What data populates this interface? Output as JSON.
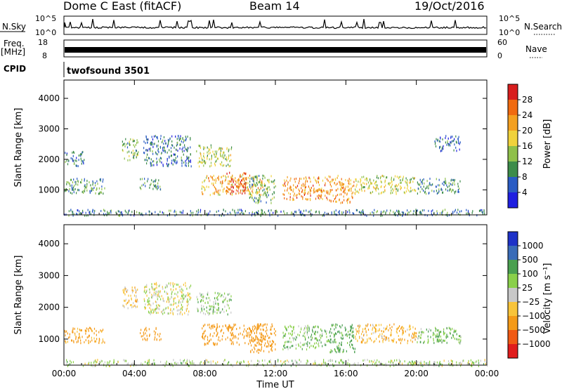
{
  "header": {
    "station": "Dome C East (fitACF)",
    "beam": "Beam 14",
    "date": "19/Oct/2016"
  },
  "summary_panels": {
    "nsky_label": "N.Sky",
    "nsky_ticks": [
      "10^5",
      "10^0"
    ],
    "nsearch_label": "N.Search",
    "nsearch_ticks": [
      "10^5",
      "10^0"
    ],
    "freq_label_line1": "Freq.",
    "freq_label_line2": "[MHz]",
    "freq_ticks": [
      "18",
      "8"
    ],
    "nave_label": "Nave",
    "nave_ticks": [
      "60",
      "0"
    ],
    "cpid_label": "CPID",
    "cpid_value": "twofsound 3501"
  },
  "colors": {
    "power": [
      "#1f1fe0",
      "#2a5cc4",
      "#3d8c4a",
      "#8fc04a",
      "#f0d23c",
      "#f4a020",
      "#f06a10",
      "#d81e1e"
    ],
    "velocity": [
      "#e01c1c",
      "#f05a14",
      "#f49a18",
      "#f8c43a",
      "#c8c8c8",
      "#8ad04a",
      "#4aa050",
      "#3a6cb8",
      "#1e32c8"
    ]
  },
  "chart_data": [
    {
      "type": "heatmap",
      "name": "power",
      "xlabel": "Time UT",
      "ylabel": "Slant Range [km]",
      "xlim": [
        0,
        24
      ],
      "ylim": [
        180,
        4600
      ],
      "x_ticks": [
        "00:00",
        "04:00",
        "08:00",
        "12:00",
        "16:00",
        "20:00",
        "00:00"
      ],
      "x_tick_values": [
        0,
        4,
        8,
        12,
        16,
        20,
        24
      ],
      "y_ticks": [
        1000,
        2000,
        3000,
        4000
      ],
      "colorbar": {
        "label": "Power [dB]",
        "ticks": [
          "28",
          "24",
          "20",
          "16",
          "12",
          "8",
          "4"
        ],
        "range": [
          0,
          30
        ]
      },
      "regions": [
        {
          "t0": 0.0,
          "t1": 2.3,
          "r0": 900,
          "r1": 1400,
          "value": 10
        },
        {
          "t0": 0.0,
          "t1": 1.2,
          "r0": 1800,
          "r1": 2300,
          "value": 7
        },
        {
          "t0": 3.3,
          "t1": 4.2,
          "r0": 2000,
          "r1": 2700,
          "value": 12
        },
        {
          "t0": 4.3,
          "t1": 5.5,
          "r0": 1000,
          "r1": 1400,
          "value": 9
        },
        {
          "t0": 4.5,
          "t1": 7.2,
          "r0": 1800,
          "r1": 2800,
          "value": 7
        },
        {
          "t0": 7.5,
          "t1": 9.5,
          "r0": 1800,
          "r1": 2500,
          "value": 14
        },
        {
          "t0": 7.8,
          "t1": 11.3,
          "r0": 850,
          "r1": 1500,
          "value": 19
        },
        {
          "t0": 9.2,
          "t1": 10.4,
          "r0": 900,
          "r1": 1600,
          "value": 26
        },
        {
          "t0": 10.5,
          "t1": 12.0,
          "r0": 600,
          "r1": 1500,
          "value": 11
        },
        {
          "t0": 12.4,
          "t1": 15.0,
          "r0": 700,
          "r1": 1450,
          "value": 22
        },
        {
          "t0": 15.0,
          "t1": 16.5,
          "r0": 600,
          "r1": 1500,
          "value": 21
        },
        {
          "t0": 16.5,
          "t1": 20.0,
          "r0": 900,
          "r1": 1500,
          "value": 15
        },
        {
          "t0": 20.0,
          "t1": 22.5,
          "r0": 900,
          "r1": 1400,
          "value": 9
        },
        {
          "t0": 21.0,
          "t1": 22.5,
          "r0": 2300,
          "r1": 2800,
          "value": 7
        },
        {
          "t0": 0.0,
          "t1": 24.0,
          "r0": 180,
          "r1": 380,
          "value": 8
        }
      ]
    },
    {
      "type": "heatmap",
      "name": "velocity",
      "xlabel": "Time UT",
      "ylabel": "Slant Range [km]",
      "xlim": [
        0,
        24
      ],
      "ylim": [
        180,
        4600
      ],
      "x_ticks": [
        "00:00",
        "04:00",
        "08:00",
        "12:00",
        "16:00",
        "20:00",
        "00:00"
      ],
      "x_tick_values": [
        0,
        4,
        8,
        12,
        16,
        20,
        24
      ],
      "y_ticks": [
        1000,
        2000,
        3000,
        4000
      ],
      "colorbar": {
        "label": "Velocity [m s⁻¹]",
        "ticks": [
          "1000",
          "500",
          "100",
          "25",
          "−25",
          "−100",
          "−500",
          "−1000"
        ]
      },
      "regions": [
        {
          "t0": 0.0,
          "t1": 2.3,
          "r0": 900,
          "r1": 1400,
          "value": -150
        },
        {
          "t0": 3.3,
          "t1": 4.2,
          "r0": 2000,
          "r1": 2700,
          "value": -60
        },
        {
          "t0": 4.3,
          "t1": 5.5,
          "r0": 1000,
          "r1": 1400,
          "value": -200
        },
        {
          "t0": 4.5,
          "t1": 7.2,
          "r0": 1800,
          "r1": 2800,
          "value": 0
        },
        {
          "t0": 7.5,
          "t1": 9.5,
          "r0": 1800,
          "r1": 2500,
          "value": 60
        },
        {
          "t0": 7.8,
          "t1": 11.3,
          "r0": 850,
          "r1": 1500,
          "value": -250
        },
        {
          "t0": 10.5,
          "t1": 12.0,
          "r0": 600,
          "r1": 1500,
          "value": -300
        },
        {
          "t0": 12.4,
          "t1": 15.0,
          "r0": 700,
          "r1": 1450,
          "value": 80
        },
        {
          "t0": 15.0,
          "t1": 16.5,
          "r0": 600,
          "r1": 1500,
          "value": 150
        },
        {
          "t0": 16.5,
          "t1": 20.0,
          "r0": 900,
          "r1": 1500,
          "value": -90
        },
        {
          "t0": 20.0,
          "t1": 22.5,
          "r0": 900,
          "r1": 1400,
          "value": 90
        },
        {
          "t0": 0.0,
          "t1": 24.0,
          "r0": 180,
          "r1": 380,
          "value": 40
        }
      ]
    }
  ]
}
